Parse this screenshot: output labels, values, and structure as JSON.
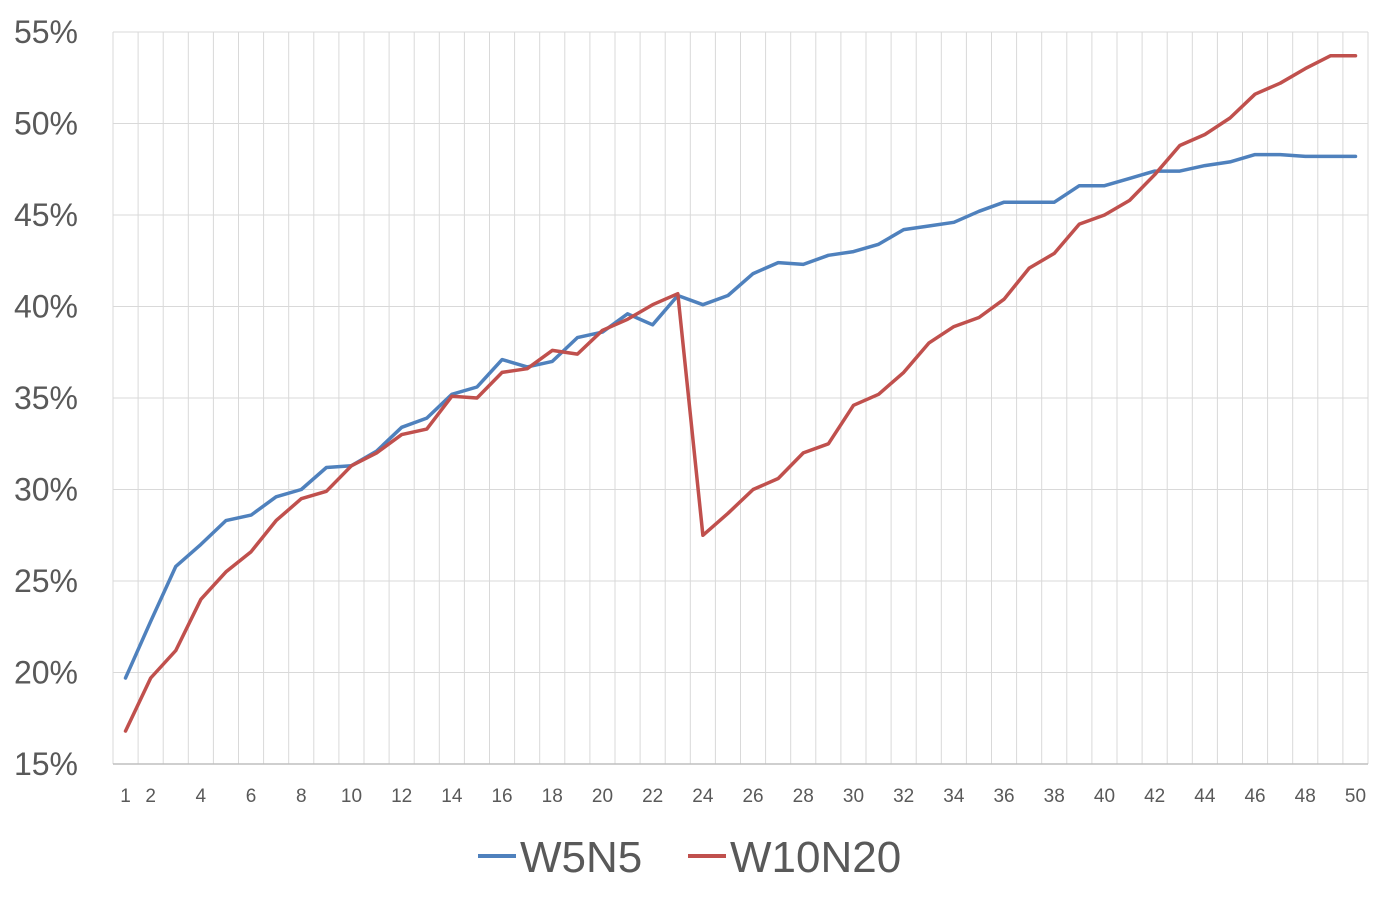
{
  "chart_data": {
    "type": "line",
    "title": "",
    "xlabel": "",
    "ylabel": "",
    "x": [
      1,
      2,
      3,
      4,
      5,
      6,
      7,
      8,
      9,
      10,
      11,
      12,
      13,
      14,
      15,
      16,
      17,
      18,
      19,
      20,
      21,
      22,
      23,
      24,
      25,
      26,
      27,
      28,
      29,
      30,
      31,
      32,
      33,
      34,
      35,
      36,
      37,
      38,
      39,
      40,
      41,
      42,
      43,
      44,
      45,
      46,
      47,
      48,
      49,
      50
    ],
    "x_tick_labels": [
      "1",
      "2",
      "4",
      "6",
      "8",
      "10",
      "12",
      "14",
      "16",
      "18",
      "20",
      "22",
      "24",
      "26",
      "28",
      "30",
      "32",
      "34",
      "36",
      "38",
      "40",
      "42",
      "44",
      "46",
      "48",
      "50"
    ],
    "ylim": [
      15,
      55
    ],
    "y_tick_labels": [
      "15%",
      "20%",
      "25%",
      "30%",
      "35%",
      "40%",
      "45%",
      "50%",
      "55%"
    ],
    "y_unit": "%",
    "grid": "vertical and horizontal",
    "legend_position": "bottom",
    "series": [
      {
        "name": "W5N5",
        "color": "#4f81bd",
        "values": [
          19.7,
          22.8,
          25.8,
          27.0,
          28.3,
          28.6,
          29.6,
          30.0,
          31.2,
          31.3,
          32.1,
          33.4,
          33.9,
          35.2,
          35.6,
          37.1,
          36.7,
          37.0,
          38.3,
          38.6,
          39.6,
          39.0,
          40.6,
          40.1,
          40.6,
          41.8,
          42.4,
          42.3,
          42.8,
          43.0,
          43.4,
          44.2,
          44.4,
          44.6,
          45.2,
          45.7,
          45.7,
          45.7,
          46.6,
          46.6,
          47.0,
          47.4,
          47.4,
          47.7,
          47.9,
          48.3,
          48.3,
          48.2,
          48.2,
          48.2
        ]
      },
      {
        "name": "W10N20",
        "color": "#c0504d",
        "values": [
          16.8,
          19.7,
          21.2,
          24.0,
          25.5,
          26.6,
          28.3,
          29.5,
          29.9,
          31.3,
          32.0,
          33.0,
          33.3,
          35.1,
          35.0,
          36.4,
          36.6,
          37.6,
          37.4,
          38.7,
          39.3,
          40.1,
          40.7,
          27.5,
          28.7,
          30.0,
          30.6,
          32.0,
          32.5,
          34.6,
          35.2,
          36.4,
          38.0,
          38.9,
          39.4,
          40.4,
          42.1,
          42.9,
          44.5,
          45.0,
          45.8,
          47.2,
          48.8,
          49.4,
          50.3,
          51.6,
          52.2,
          53.0,
          53.7,
          53.7
        ]
      }
    ]
  }
}
